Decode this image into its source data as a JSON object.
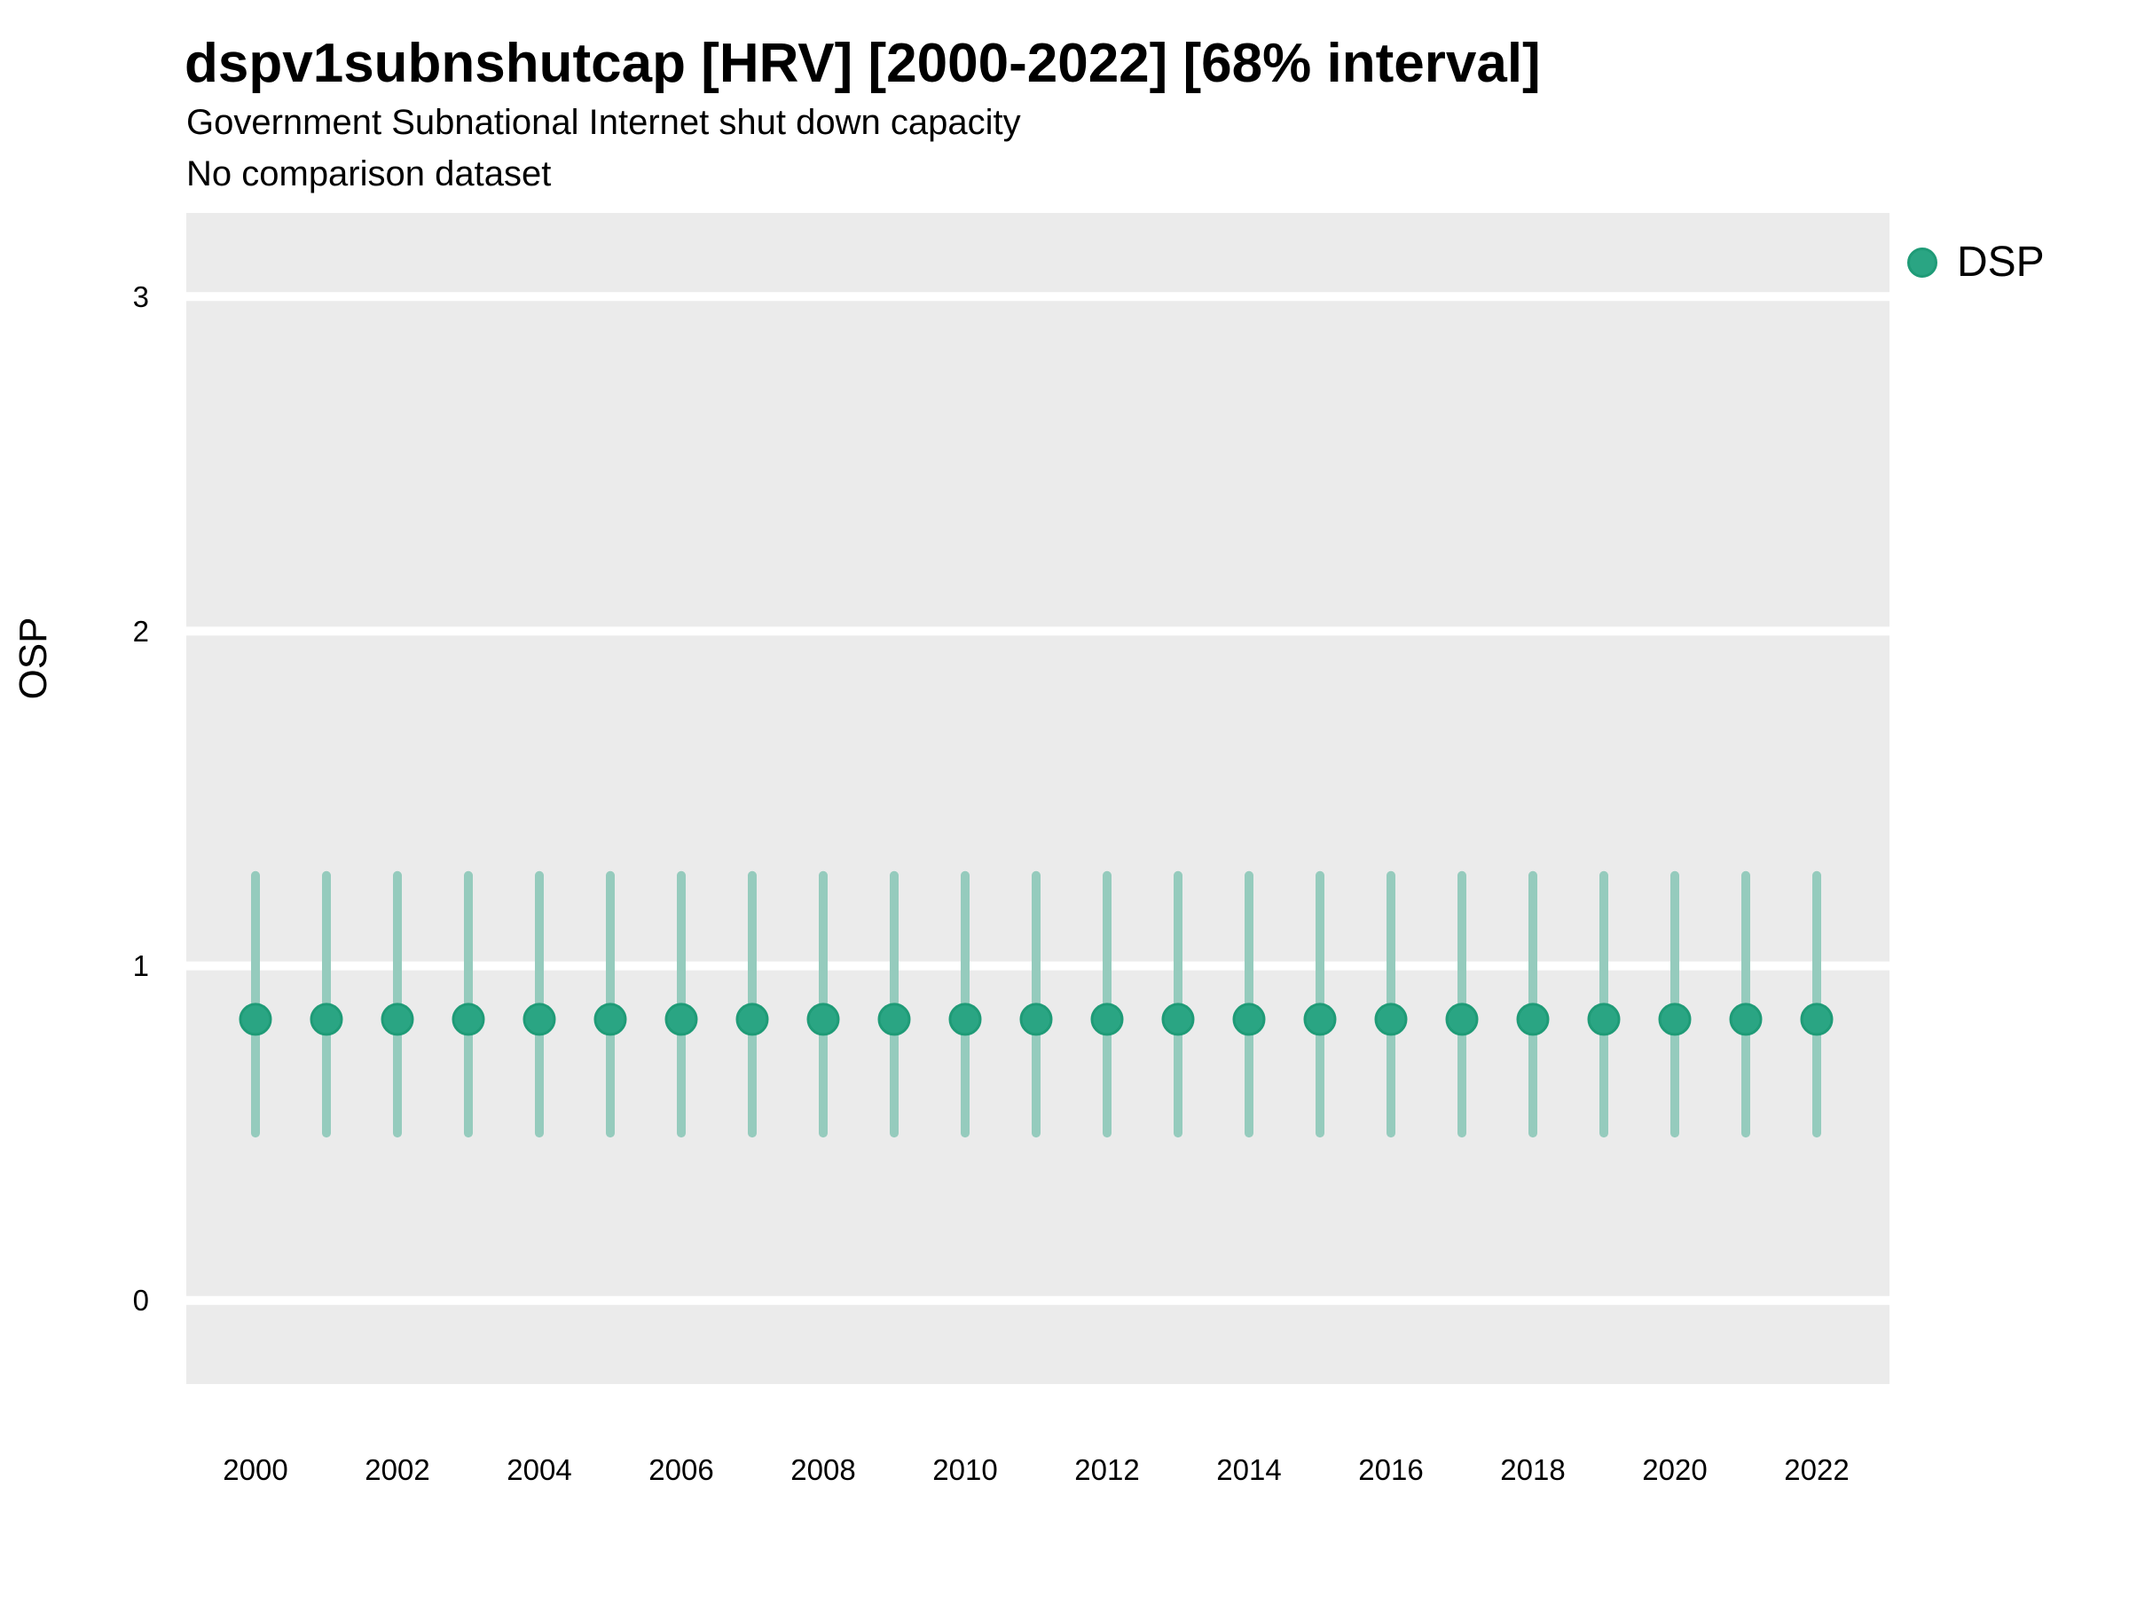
{
  "header": {
    "title": "dspv1subnshutcap [HRV] [2000-2022] [68% interval]",
    "subtitle": "Government Subnational Internet shut down capacity",
    "subtitle2": "No comparison dataset"
  },
  "legend": {
    "position": "right",
    "items": [
      {
        "label": "DSP",
        "color": "#2aa583",
        "border_color": "#1f9b77"
      }
    ]
  },
  "chart_data": {
    "type": "scatter",
    "subtype": "pointrange",
    "title": "dspv1subnshutcap [HRV] [2000-2022] [68% interval]",
    "subtitle": "Government Subnational Internet shut down capacity",
    "note": "No comparison dataset",
    "interval_label": "68% interval",
    "xlabel": "",
    "ylabel": "OSP",
    "x": [
      2000,
      2001,
      2002,
      2003,
      2004,
      2005,
      2006,
      2007,
      2008,
      2009,
      2010,
      2011,
      2012,
      2013,
      2014,
      2015,
      2016,
      2017,
      2018,
      2019,
      2020,
      2021,
      2022
    ],
    "series": [
      {
        "name": "DSP",
        "values": [
          0.84,
          0.84,
          0.84,
          0.84,
          0.84,
          0.84,
          0.84,
          0.84,
          0.84,
          0.84,
          0.84,
          0.84,
          0.84,
          0.84,
          0.84,
          0.84,
          0.84,
          0.84,
          0.84,
          0.84,
          0.84,
          0.84,
          0.84
        ],
        "lower": [
          0.5,
          0.5,
          0.5,
          0.5,
          0.5,
          0.5,
          0.5,
          0.5,
          0.5,
          0.5,
          0.5,
          0.5,
          0.5,
          0.5,
          0.5,
          0.5,
          0.5,
          0.5,
          0.5,
          0.5,
          0.5,
          0.5,
          0.5
        ],
        "upper": [
          1.27,
          1.27,
          1.27,
          1.27,
          1.27,
          1.27,
          1.27,
          1.27,
          1.27,
          1.27,
          1.27,
          1.27,
          1.27,
          1.27,
          1.27,
          1.27,
          1.27,
          1.27,
          1.27,
          1.27,
          1.27,
          1.27,
          1.27
        ]
      }
    ],
    "ylim": [
      -0.25,
      3.25
    ],
    "yticks": [
      0,
      1,
      2,
      3
    ],
    "xticks": [
      2000,
      2002,
      2004,
      2006,
      2008,
      2010,
      2012,
      2014,
      2016,
      2018,
      2020,
      2022
    ],
    "grid": "horizontal-major-only",
    "legend_position": "right",
    "colors": {
      "panel_bg": "#ebebeb",
      "gridline": "#ffffff",
      "point_fill": "#2aa583",
      "point_stroke": "#1f9b77",
      "interval_stroke": "#95cbbd",
      "axis_text": "#000000"
    }
  }
}
